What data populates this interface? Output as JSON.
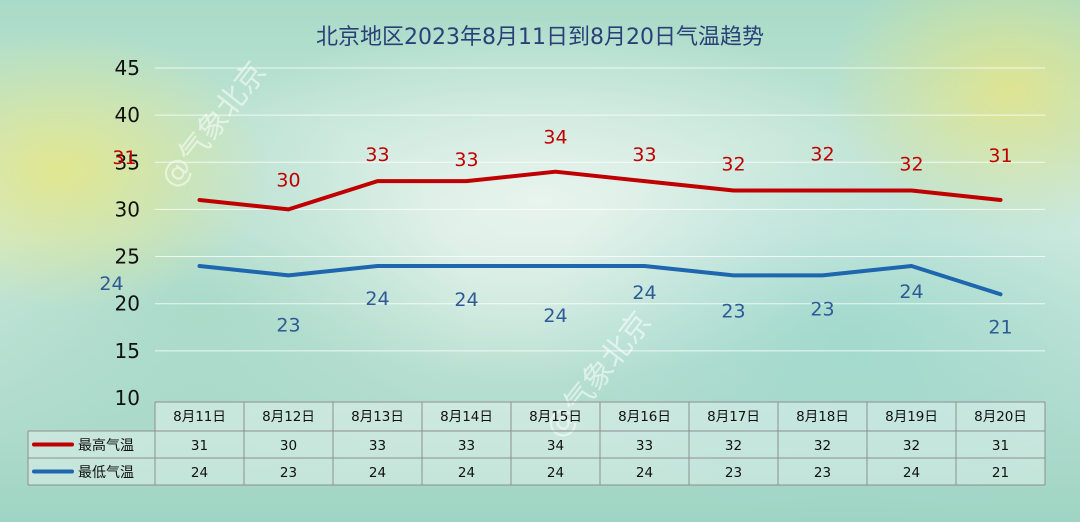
{
  "chart_data": {
    "type": "line",
    "title": "北京地区2023年8月11日到8月20日气温趋势",
    "categories": [
      "8月11日",
      "8月12日",
      "8月13日",
      "8月14日",
      "8月15日",
      "8月16日",
      "8月17日",
      "8月18日",
      "8月19日",
      "8月20日"
    ],
    "series": [
      {
        "name": "最高气温",
        "color": "#c00000",
        "values": [
          31,
          30,
          33,
          33,
          34,
          33,
          32,
          32,
          32,
          31
        ]
      },
      {
        "name": "最低气温",
        "color": "#1e66ad",
        "values": [
          24,
          23,
          24,
          24,
          24,
          24,
          23,
          23,
          24,
          21
        ]
      }
    ],
    "yticks": [
      10,
      15,
      20,
      25,
      30,
      35,
      40,
      45
    ],
    "ylim": [
      10,
      45
    ],
    "grid": true,
    "legend": "data-table-left",
    "watermark": "@气象北京"
  }
}
